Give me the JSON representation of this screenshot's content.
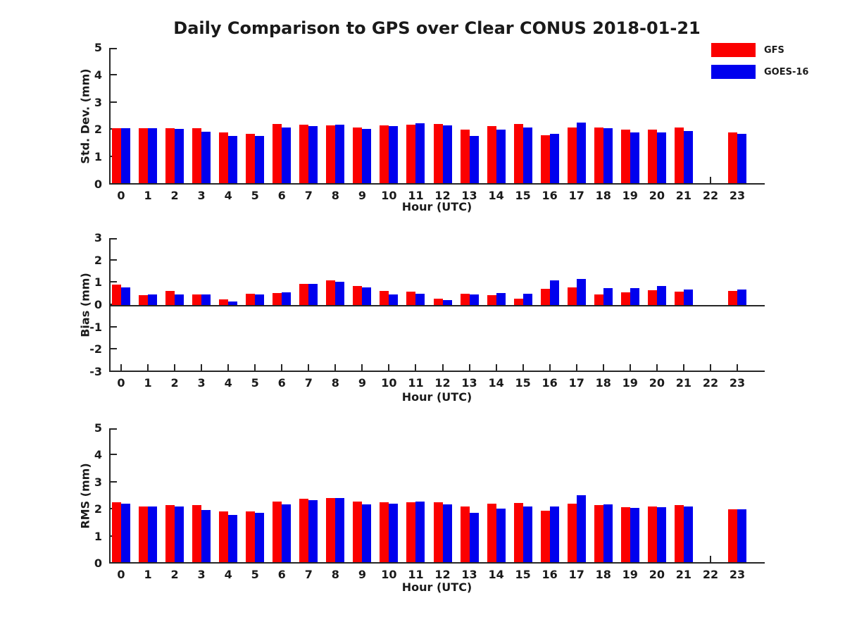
{
  "title": "Daily Comparison to GPS over Clear CONUS 2018-01-21",
  "legend": [
    {
      "label": "GFS",
      "color": "#fb0000"
    },
    {
      "label": "GOES-16",
      "color": "#0000ee"
    }
  ],
  "colors": {
    "axis": "#262626",
    "text": "#1a1a1a",
    "background": "#ffffff"
  },
  "chart_data": [
    {
      "type": "bar",
      "title": "",
      "ylabel": "Std. Dev. (mm)",
      "xlabel": "Hour (UTC)",
      "ylim": [
        0,
        5
      ],
      "yticks": [
        0,
        1,
        2,
        3,
        4,
        5
      ],
      "grid": false,
      "legend_position": "top-right",
      "categories": [
        0,
        1,
        2,
        3,
        4,
        5,
        6,
        7,
        8,
        9,
        10,
        11,
        12,
        13,
        14,
        15,
        16,
        17,
        18,
        19,
        20,
        21,
        22,
        23
      ],
      "series": [
        {
          "name": "GFS",
          "color": "#fb0000",
          "values": [
            2.07,
            2.05,
            2.07,
            2.07,
            1.9,
            1.85,
            2.22,
            2.18,
            2.16,
            2.1,
            2.17,
            2.18,
            2.21,
            2.02,
            2.15,
            2.22,
            1.8,
            2.1,
            2.1,
            2.0,
            2.0,
            2.08,
            null,
            1.9
          ]
        },
        {
          "name": "GOES-16",
          "color": "#0000ee",
          "values": [
            2.07,
            2.05,
            2.03,
            1.93,
            1.77,
            1.79,
            2.1,
            2.13,
            2.18,
            2.04,
            2.15,
            2.23,
            2.17,
            1.78,
            2.0,
            2.08,
            1.85,
            2.28,
            2.05,
            1.9,
            1.9,
            1.97,
            null,
            1.86
          ]
        }
      ],
      "note": "no data at hour 22"
    },
    {
      "type": "bar",
      "title": "",
      "ylabel": "Bias (mm)",
      "xlabel": "Hour (UTC)",
      "ylim": [
        -3,
        3
      ],
      "yticks": [
        -3,
        -2,
        -1,
        0,
        1,
        2,
        3
      ],
      "grid": false,
      "categories": [
        0,
        1,
        2,
        3,
        4,
        5,
        6,
        7,
        8,
        9,
        10,
        11,
        12,
        13,
        14,
        15,
        16,
        17,
        18,
        19,
        20,
        21,
        22,
        23
      ],
      "series": [
        {
          "name": "GFS",
          "color": "#fb0000",
          "values": [
            0.92,
            0.45,
            0.62,
            0.47,
            0.25,
            0.5,
            0.55,
            0.95,
            1.11,
            0.85,
            0.63,
            0.6,
            0.27,
            0.5,
            0.45,
            0.3,
            0.73,
            0.8,
            0.46,
            0.58,
            0.66,
            0.61,
            null,
            0.63
          ]
        },
        {
          "name": "GOES-16",
          "color": "#0000ee",
          "values": [
            0.78,
            0.48,
            0.48,
            0.48,
            0.17,
            0.48,
            0.58,
            0.95,
            1.05,
            0.8,
            0.48,
            0.52,
            0.23,
            0.48,
            0.55,
            0.49,
            1.1,
            1.18,
            0.75,
            0.77,
            0.85,
            0.68,
            null,
            0.71
          ]
        }
      ],
      "note": "no data at hour 22"
    },
    {
      "type": "bar",
      "title": "",
      "ylabel": "RMS (mm)",
      "xlabel": "Hour (UTC)",
      "ylim": [
        0,
        5
      ],
      "yticks": [
        0,
        1,
        2,
        3,
        4,
        5
      ],
      "grid": false,
      "categories": [
        0,
        1,
        2,
        3,
        4,
        5,
        6,
        7,
        8,
        9,
        10,
        11,
        12,
        13,
        14,
        15,
        16,
        17,
        18,
        19,
        20,
        21,
        22,
        23
      ],
      "series": [
        {
          "name": "GFS",
          "color": "#fb0000",
          "values": [
            2.26,
            2.12,
            2.17,
            2.15,
            1.93,
            1.92,
            2.3,
            2.4,
            2.43,
            2.3,
            2.27,
            2.27,
            2.27,
            2.1,
            2.21,
            2.24,
            1.95,
            2.21,
            2.16,
            2.08,
            2.11,
            2.16,
            null,
            2.0
          ]
        },
        {
          "name": "GOES-16",
          "color": "#0000ee",
          "values": [
            2.22,
            2.12,
            2.1,
            1.97,
            1.8,
            1.87,
            2.18,
            2.35,
            2.43,
            2.2,
            2.22,
            2.3,
            2.2,
            1.87,
            2.03,
            2.11,
            2.11,
            2.53,
            2.19,
            2.06,
            2.08,
            2.1,
            null,
            2.0
          ]
        }
      ],
      "note": "no data at hour 22"
    }
  ]
}
